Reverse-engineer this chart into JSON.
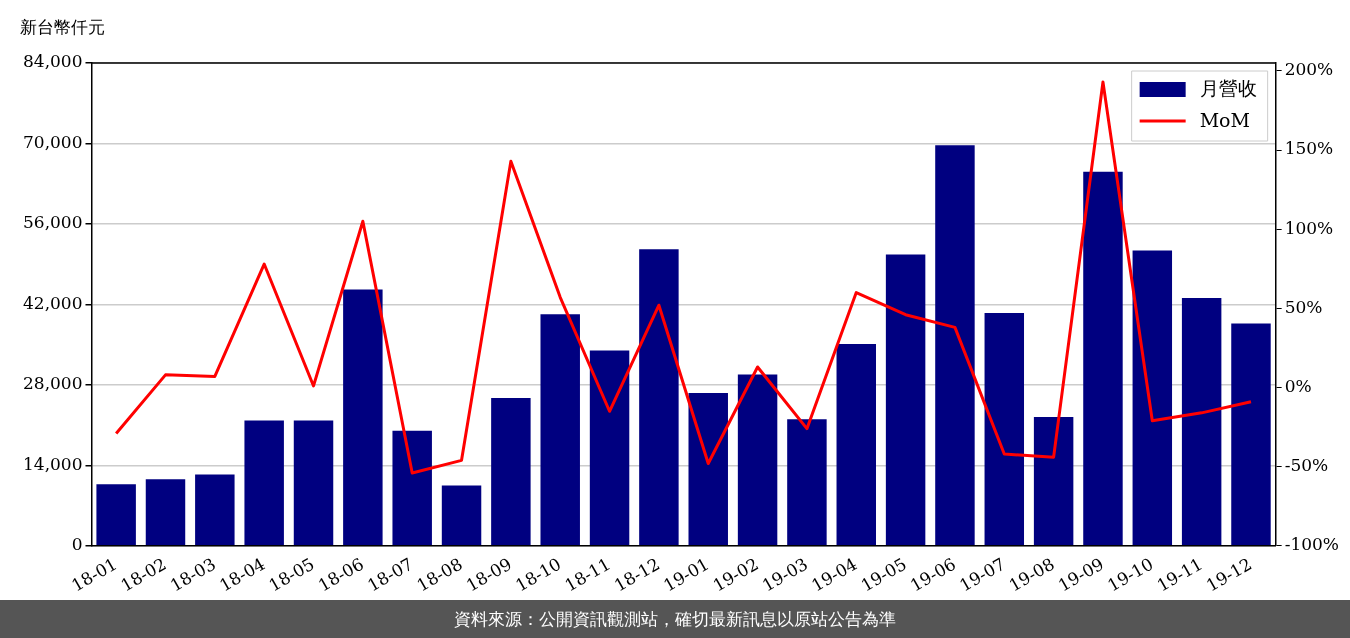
{
  "chart_data": {
    "type": "bar",
    "ylabel": "新台幣仟元",
    "annotations": [
      "資料來源：公開資訊觀測站，確切最新訊息以原站公告為準"
    ],
    "categories": [
      "18-01",
      "18-02",
      "18-03",
      "18-04",
      "18-05",
      "18-06",
      "18-07",
      "18-08",
      "18-09",
      "18-10",
      "18-11",
      "18-12",
      "19-01",
      "19-02",
      "19-03",
      "19-04",
      "19-05",
      "19-06",
      "19-07",
      "19-08",
      "19-09",
      "19-10",
      "19-11",
      "19-12"
    ],
    "series": [
      {
        "name": "月營收",
        "color": "#000080",
        "values": [
          10700,
          11600,
          12400,
          21800,
          21800,
          44600,
          20000,
          10500,
          25700,
          40300,
          34000,
          51600,
          26600,
          29800,
          22000,
          35100,
          50700,
          69700,
          40500,
          22400,
          65100,
          51400,
          43100,
          38700
        ]
      },
      {
        "name": "MoM",
        "type": "line",
        "axis": "y2",
        "color": "#ff0000",
        "values": [
          -29,
          8,
          7,
          78,
          1,
          105,
          -54,
          -46,
          143,
          57,
          -15,
          52,
          -48,
          13,
          -26,
          60,
          46,
          38,
          -42,
          -44,
          193,
          -21,
          -16,
          -9
        ]
      }
    ],
    "ylim": [
      0,
      84000
    ],
    "yticks": [
      {
        "value": 0,
        "label": "0"
      },
      {
        "value": 14000,
        "label": "14,000"
      },
      {
        "value": 28000,
        "label": "28,000"
      },
      {
        "value": 42000,
        "label": "42,000"
      },
      {
        "value": 56000,
        "label": "56,000"
      },
      {
        "value": 70000,
        "label": "70,000"
      },
      {
        "value": 84000,
        "label": "84,000"
      }
    ],
    "y2lim": [
      -100,
      205
    ],
    "y2ticks": [
      {
        "value": -100,
        "label": "-100%"
      },
      {
        "value": -50,
        "label": "-50%"
      },
      {
        "value": 0,
        "label": "0%"
      },
      {
        "value": 50,
        "label": "50%"
      },
      {
        "value": 100,
        "label": "100%"
      },
      {
        "value": 150,
        "label": "150%"
      },
      {
        "value": 200,
        "label": "200%"
      }
    ],
    "grid": "y",
    "legend": "top right",
    "marker": "none",
    "line_style": "solid"
  }
}
